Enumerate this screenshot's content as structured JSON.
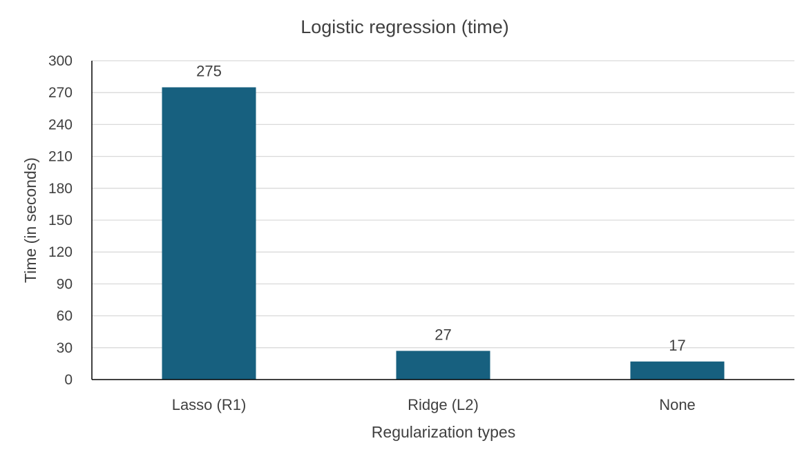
{
  "chart_data": {
    "type": "bar",
    "title": "Logistic regression (time)",
    "xlabel": "Regularization types",
    "ylabel": "Time (in seconds)",
    "categories": [
      "Lasso (R1)",
      "Ridge (L2)",
      "None"
    ],
    "series": [
      {
        "values": [
          275,
          27,
          17
        ],
        "color": "#17607f"
      }
    ],
    "data_labels": [
      "275",
      "27",
      "17"
    ],
    "ylim": [
      0,
      300
    ],
    "yticks": [
      0,
      30,
      60,
      90,
      120,
      150,
      180,
      210,
      240,
      270,
      300
    ],
    "grid": true,
    "legend": "none"
  }
}
